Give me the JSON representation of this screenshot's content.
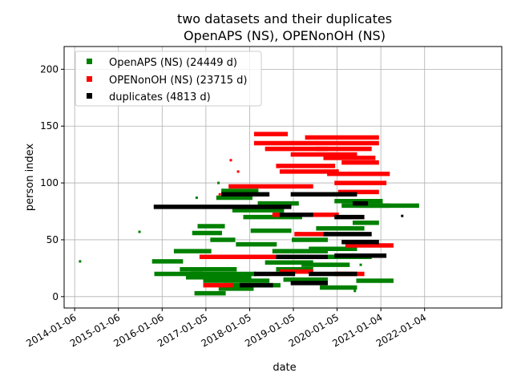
{
  "chart_data": {
    "type": "scatter",
    "title": [
      "two datasets and their duplicates",
      "OpenAPS (NS), OPENonOH (NS)"
    ],
    "xlabel": "date",
    "ylabel": "person index",
    "xlim": [
      "2013-10-10",
      "2023-10-10"
    ],
    "ylim": [
      -10,
      220
    ],
    "grid": true,
    "legend_position": "upper-left",
    "x_ticks": [
      "2014-01-06",
      "2015-01-06",
      "2016-01-06",
      "2017-01-05",
      "2018-01-05",
      "2019-01-05",
      "2020-01-05",
      "2021-01-04",
      "2022-01-04"
    ],
    "y_ticks": [
      0,
      50,
      100,
      150,
      200
    ],
    "series": [
      {
        "name": "OpenAPS (NS) (24449 d)",
        "color": "#008000",
        "segments": [
          [
            "2015-11-01",
            "2016-06-10",
            31
          ],
          [
            "2015-11-20",
            "2016-11-20",
            20
          ],
          [
            "2016-05-01",
            "2017-02-01",
            40
          ],
          [
            "2016-06-20",
            "2017-09-01",
            24
          ],
          [
            "2016-08-10",
            "2018-01-01",
            17
          ],
          [
            "2016-09-20",
            "2018-02-10",
            20
          ],
          [
            "2016-10-20",
            "2017-06-01",
            3
          ],
          [
            "2016-10-01",
            "2017-05-01",
            56
          ],
          [
            "2016-11-15",
            "2017-05-25",
            62
          ],
          [
            "2017-01-01",
            "2018-06-01",
            14
          ],
          [
            "2017-03-01",
            "2017-08-20",
            50
          ],
          [
            "2017-05-10",
            "2018-01-20",
            7
          ],
          [
            "2017-07-01",
            "2018-09-01",
            10
          ],
          [
            "2017-04-20",
            "2018-01-10",
            87
          ],
          [
            "2017-06-01",
            "2018-03-01",
            93
          ],
          [
            "2017-09-01",
            "2018-10-01",
            76
          ],
          [
            "2017-10-01",
            "2018-08-01",
            46
          ],
          [
            "2017-12-01",
            "2019-03-01",
            70
          ],
          [
            "2018-02-01",
            "2018-12-01",
            58
          ],
          [
            "2018-04-01",
            "2019-02-01",
            82
          ],
          [
            "2018-06-01",
            "2019-06-01",
            30
          ],
          [
            "2018-08-01",
            "2019-10-01",
            40
          ],
          [
            "2018-09-01",
            "2019-06-01",
            24
          ],
          [
            "2018-11-01",
            "2019-10-01",
            15
          ],
          [
            "2019-01-10",
            "2019-10-01",
            50
          ],
          [
            "2019-04-01",
            "2020-04-01",
            28
          ],
          [
            "2019-06-01",
            "2020-06-01",
            42
          ],
          [
            "2019-08-01",
            "2020-08-01",
            60
          ],
          [
            "2019-09-01",
            "2020-06-01",
            8
          ],
          [
            "2019-10-01",
            "2020-10-01",
            35
          ],
          [
            "2020-01-01",
            "2021-01-01",
            84
          ],
          [
            "2020-03-01",
            "2021-03-01",
            80
          ],
          [
            "2020-06-01",
            "2020-12-01",
            65
          ],
          [
            "2020-07-01",
            "2021-04-01",
            14
          ],
          [
            "2020-08-01",
            "2021-11-01",
            80
          ]
        ],
        "points": [
          [
            "2014-02-20",
            31
          ],
          [
            "2015-07-01",
            57
          ],
          [
            "2016-10-20",
            87
          ],
          [
            "2017-04-20",
            100
          ],
          [
            "2019-02-10",
            56
          ],
          [
            "2020-07-20",
            28
          ],
          [
            "2020-06-01",
            5
          ]
        ]
      },
      {
        "name": "OPENonOH (NS) (23715 d)",
        "color": "#ff0000",
        "segments": [
          [
            "2016-12-01",
            "2019-08-01",
            35
          ],
          [
            "2017-01-01",
            "2017-08-01",
            10
          ],
          [
            "2017-08-01",
            "2019-06-01",
            97
          ],
          [
            "2018-03-01",
            "2018-11-01",
            143
          ],
          [
            "2018-03-01",
            "2019-05-01",
            135
          ],
          [
            "2018-06-01",
            "2019-10-01",
            130
          ],
          [
            "2018-09-01",
            "2019-12-01",
            115
          ],
          [
            "2018-08-01",
            "2020-01-01",
            72
          ],
          [
            "2018-10-01",
            "2019-06-01",
            22
          ],
          [
            "2018-10-01",
            "2020-01-01",
            110
          ],
          [
            "2019-01-01",
            "2020-06-01",
            125
          ],
          [
            "2019-02-01",
            "2019-10-01",
            55
          ],
          [
            "2019-05-01",
            "2020-12-01",
            140
          ],
          [
            "2019-06-01",
            "2020-12-01",
            135
          ],
          [
            "2019-08-01",
            "2020-10-01",
            130
          ],
          [
            "2019-10-01",
            "2020-11-01",
            122
          ],
          [
            "2019-11-01",
            "2021-03-01",
            108
          ],
          [
            "2020-01-01",
            "2020-08-01",
            20
          ],
          [
            "2020-01-01",
            "2021-02-01",
            100
          ],
          [
            "2020-02-01",
            "2020-12-01",
            92
          ],
          [
            "2020-04-01",
            "2021-04-01",
            45
          ],
          [
            "2020-03-01",
            "2020-12-01",
            118
          ]
        ],
        "points": [
          [
            "2017-05-01",
            90
          ],
          [
            "2017-08-01",
            120
          ],
          [
            "2017-10-01",
            110
          ]
        ]
      },
      {
        "name": "duplicates (4813 d)",
        "color": "#000000",
        "segments": [
          [
            "2015-11-15",
            "2018-12-01",
            79
          ],
          [
            "2017-06-01",
            "2018-06-01",
            90
          ],
          [
            "2017-11-01",
            "2018-07-01",
            10
          ],
          [
            "2018-03-01",
            "2019-01-01",
            20
          ],
          [
            "2018-09-01",
            "2019-10-01",
            35
          ],
          [
            "2018-10-01",
            "2019-06-01",
            72
          ],
          [
            "2019-01-01",
            "2020-06-01",
            90
          ],
          [
            "2019-01-01",
            "2019-10-01",
            12
          ],
          [
            "2019-06-01",
            "2020-06-01",
            20
          ],
          [
            "2019-10-01",
            "2020-10-01",
            55
          ],
          [
            "2020-01-01",
            "2021-02-01",
            36
          ],
          [
            "2020-01-01",
            "2020-08-01",
            70
          ],
          [
            "2020-03-01",
            "2020-12-01",
            48
          ],
          [
            "2020-06-01",
            "2020-09-01",
            82
          ]
        ],
        "points": [
          [
            "2021-07-01",
            71
          ]
        ]
      }
    ]
  }
}
